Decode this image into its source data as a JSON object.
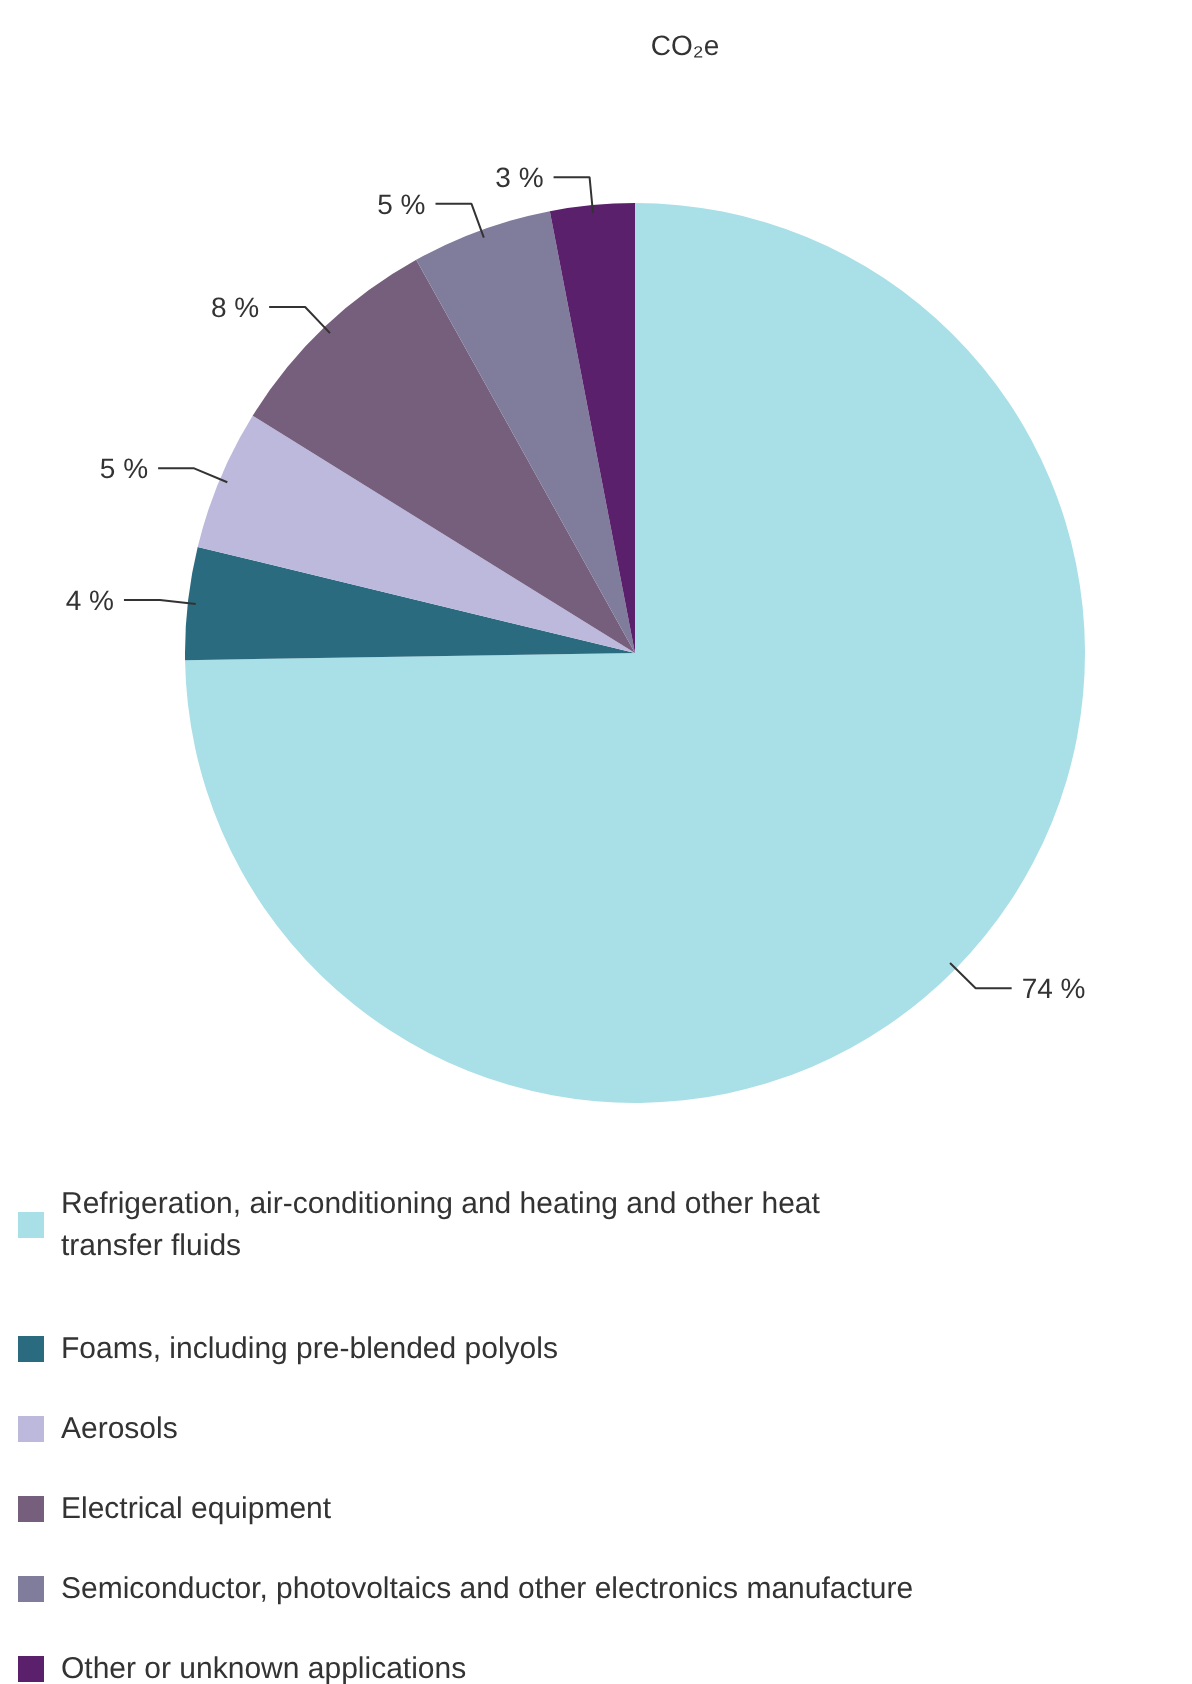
{
  "chart_data": {
    "type": "pie",
    "title": "CO₂e",
    "categories": [
      "Refrigeration, air-conditioning and heating and other heat transfer fluids",
      "Foams, including pre-blended polyols",
      "Aerosols",
      "Electrical equipment",
      "Semiconductor, photovoltaics and other electronics manufacture",
      "Other or unknown applications"
    ],
    "values": [
      74,
      4,
      5,
      8,
      5,
      3
    ],
    "value_labels": [
      "74 %",
      "4 %",
      "5 %",
      "8 %",
      "5 %",
      "3 %"
    ],
    "colors": [
      "#a9dfe7",
      "#2b6b7f",
      "#bdb9dd",
      "#765f7c",
      "#807c9c",
      "#5a206b"
    ],
    "legend": "bottom"
  }
}
